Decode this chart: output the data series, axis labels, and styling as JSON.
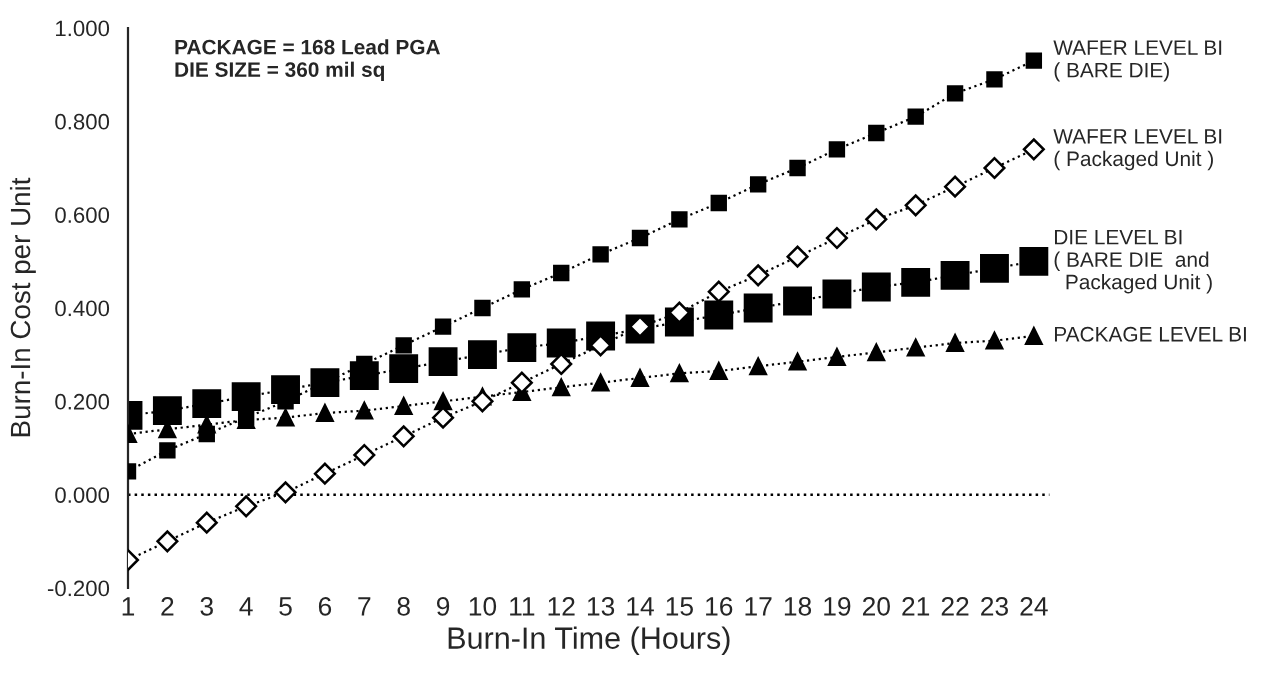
{
  "chart_data": {
    "type": "line",
    "xlabel": "Burn-In Time (Hours)",
    "ylabel": "Burn-In Cost per Unit",
    "annotations": [
      "PACKAGE = 168 Lead PGA\nDIE SIZE = 360 mil sq"
    ],
    "x": [
      1,
      2,
      3,
      4,
      5,
      6,
      7,
      8,
      9,
      10,
      11,
      12,
      13,
      14,
      15,
      16,
      17,
      18,
      19,
      20,
      21,
      22,
      23,
      24
    ],
    "series": [
      {
        "name": "WAFER LEVEL BI\n( BARE DIE)",
        "color": "#000000",
        "marker": "square",
        "line_style": "dotted",
        "values": [
          0.05,
          0.095,
          0.13,
          0.165,
          0.2,
          null,
          0.28,
          0.32,
          0.36,
          0.4,
          0.44,
          0.475,
          0.515,
          0.55,
          0.59,
          0.625,
          0.665,
          0.7,
          0.74,
          0.775,
          0.81,
          0.86,
          0.89,
          0.93
        ]
      },
      {
        "name": "WAFER LEVEL BI\n( Packaged Unit )",
        "color": "#000000",
        "marker": "diamond",
        "line_style": "dotted",
        "values": [
          -0.14,
          -0.1,
          -0.06,
          -0.025,
          0.005,
          0.045,
          0.085,
          0.125,
          0.165,
          0.2,
          0.24,
          0.28,
          0.32,
          0.36,
          0.39,
          0.435,
          0.47,
          0.51,
          0.55,
          0.59,
          0.62,
          0.66,
          0.7,
          0.74
        ]
      },
      {
        "name": "DIE LEVEL BI\n( BARE DIE  and\n  Packaged Unit )",
        "color": "#000000",
        "marker": "square",
        "line_style": "dotted",
        "values": [
          0.17,
          0.18,
          0.195,
          0.21,
          0.225,
          0.24,
          0.255,
          0.27,
          0.285,
          0.3,
          0.315,
          0.325,
          0.34,
          0.355,
          0.37,
          0.385,
          0.4,
          0.415,
          0.43,
          0.445,
          0.455,
          0.47,
          0.485,
          0.5
        ]
      },
      {
        "name": "PACKAGE LEVEL BI",
        "color": "#000000",
        "marker": "triangle",
        "line_style": "dotted",
        "values": [
          0.13,
          0.14,
          0.15,
          0.16,
          0.165,
          0.175,
          0.18,
          0.19,
          0.2,
          0.21,
          0.22,
          0.23,
          0.24,
          0.25,
          0.26,
          0.265,
          0.275,
          0.285,
          0.295,
          0.305,
          0.315,
          0.325,
          0.33,
          0.34
        ]
      }
    ],
    "xlim": [
      1,
      24.4
    ],
    "xticks": [
      1,
      2,
      3,
      4,
      5,
      6,
      7,
      8,
      9,
      10,
      11,
      12,
      13,
      14,
      15,
      16,
      17,
      18,
      19,
      20,
      21,
      22,
      23,
      24
    ],
    "ylim": [
      -0.2,
      1.0
    ],
    "yticks": [
      {
        "value": -0.2,
        "label": "-0.200"
      },
      {
        "value": 0,
        "label": "0.000"
      },
      {
        "value": 0.2,
        "label": "0.200"
      },
      {
        "value": 0.4,
        "label": "0.400"
      },
      {
        "value": 0.6,
        "label": "0.600"
      },
      {
        "value": 0.8,
        "label": "0.800"
      },
      {
        "value": 1.0,
        "label": "1.000"
      }
    ],
    "ref_lines": [
      {
        "axis": "y",
        "value": 0,
        "label": null,
        "color": "#000000",
        "line_style": "dotted"
      }
    ],
    "grid": false,
    "legend": false
  }
}
